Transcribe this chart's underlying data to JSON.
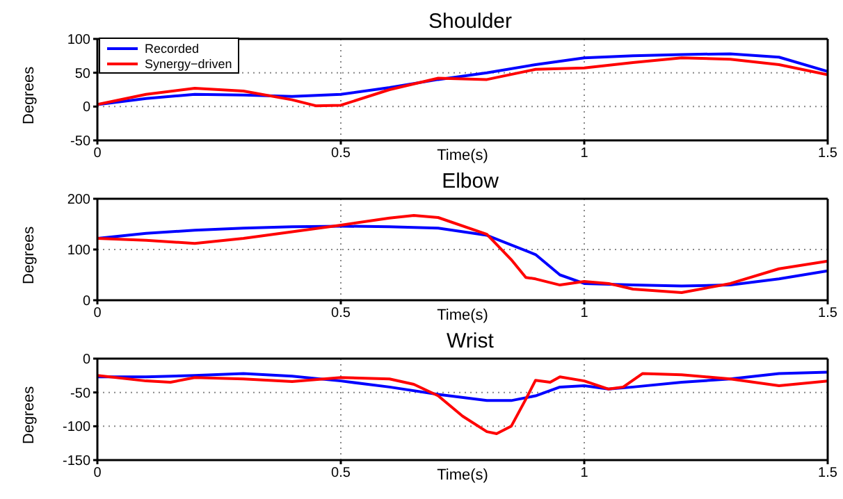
{
  "chart_data": [
    {
      "type": "line",
      "title": "Shoulder",
      "xlabel": "Time(s)",
      "ylabel": "Degrees",
      "xlim": [
        0,
        1.5
      ],
      "xticks": [
        0,
        0.5,
        1,
        1.5
      ],
      "ylim": [
        -50,
        100
      ],
      "yticks": [
        -50,
        0,
        50,
        100
      ],
      "grid": true,
      "legend": "top left",
      "series": [
        {
          "name": "Recorded",
          "color": "#0000ff",
          "x": [
            0,
            0.1,
            0.2,
            0.3,
            0.4,
            0.5,
            0.6,
            0.7,
            0.8,
            0.9,
            1.0,
            1.1,
            1.2,
            1.3,
            1.4,
            1.5
          ],
          "values": [
            3,
            12,
            18,
            17,
            15,
            18,
            28,
            40,
            50,
            62,
            72,
            75,
            77,
            78,
            73,
            52
          ]
        },
        {
          "name": "Synergy−driven",
          "color": "#ff0000",
          "x": [
            0,
            0.1,
            0.2,
            0.3,
            0.4,
            0.45,
            0.5,
            0.6,
            0.7,
            0.8,
            0.9,
            1.0,
            1.1,
            1.2,
            1.3,
            1.4,
            1.5
          ],
          "values": [
            3,
            18,
            27,
            23,
            10,
            1,
            2,
            25,
            42,
            40,
            55,
            57,
            65,
            72,
            70,
            62,
            47
          ]
        }
      ]
    },
    {
      "type": "line",
      "title": "Elbow",
      "xlabel": "Time(s)",
      "ylabel": "Degrees",
      "xlim": [
        0,
        1.5
      ],
      "xticks": [
        0,
        0.5,
        1,
        1.5
      ],
      "ylim": [
        0,
        200
      ],
      "yticks": [
        0,
        100,
        200
      ],
      "grid": true,
      "series": [
        {
          "color": "#0000ff",
          "x": [
            0,
            0.1,
            0.2,
            0.3,
            0.4,
            0.5,
            0.6,
            0.7,
            0.8,
            0.9,
            0.95,
            1.0,
            1.1,
            1.2,
            1.3,
            1.4,
            1.5
          ],
          "values": [
            122,
            132,
            138,
            142,
            145,
            146,
            145,
            142,
            128,
            90,
            50,
            33,
            30,
            28,
            30,
            42,
            58
          ]
        },
        {
          "color": "#ff0000",
          "x": [
            0,
            0.1,
            0.2,
            0.3,
            0.4,
            0.5,
            0.6,
            0.65,
            0.7,
            0.8,
            0.85,
            0.88,
            0.9,
            0.95,
            1.0,
            1.05,
            1.1,
            1.2,
            1.3,
            1.4,
            1.5
          ],
          "values": [
            122,
            118,
            112,
            122,
            135,
            148,
            162,
            167,
            163,
            130,
            80,
            45,
            42,
            30,
            37,
            33,
            22,
            15,
            33,
            62,
            77
          ]
        }
      ]
    },
    {
      "type": "line",
      "title": "Wrist",
      "xlabel": "Time(s)",
      "ylabel": "Degrees",
      "xlim": [
        0,
        1.5
      ],
      "xticks": [
        0,
        0.5,
        1,
        1.5
      ],
      "ylim": [
        -150,
        0
      ],
      "yticks": [
        -150,
        -100,
        -50,
        0
      ],
      "grid": true,
      "series": [
        {
          "color": "#0000ff",
          "x": [
            0,
            0.1,
            0.2,
            0.3,
            0.4,
            0.5,
            0.6,
            0.7,
            0.8,
            0.85,
            0.9,
            0.95,
            1.0,
            1.05,
            1.1,
            1.2,
            1.3,
            1.4,
            1.5
          ],
          "values": [
            -27,
            -27,
            -25,
            -22,
            -26,
            -33,
            -42,
            -53,
            -62,
            -62,
            -55,
            -42,
            -40,
            -45,
            -42,
            -35,
            -30,
            -22,
            -20
          ]
        },
        {
          "color": "#ff0000",
          "x": [
            0,
            0.1,
            0.15,
            0.2,
            0.3,
            0.4,
            0.5,
            0.6,
            0.65,
            0.7,
            0.75,
            0.8,
            0.82,
            0.85,
            0.88,
            0.9,
            0.93,
            0.95,
            1.0,
            1.05,
            1.08,
            1.12,
            1.2,
            1.3,
            1.4,
            1.5
          ],
          "values": [
            -25,
            -33,
            -35,
            -28,
            -30,
            -34,
            -28,
            -30,
            -38,
            -55,
            -85,
            -108,
            -111,
            -100,
            -60,
            -32,
            -35,
            -27,
            -33,
            -45,
            -42,
            -22,
            -24,
            -30,
            -40,
            -33
          ]
        }
      ]
    }
  ]
}
